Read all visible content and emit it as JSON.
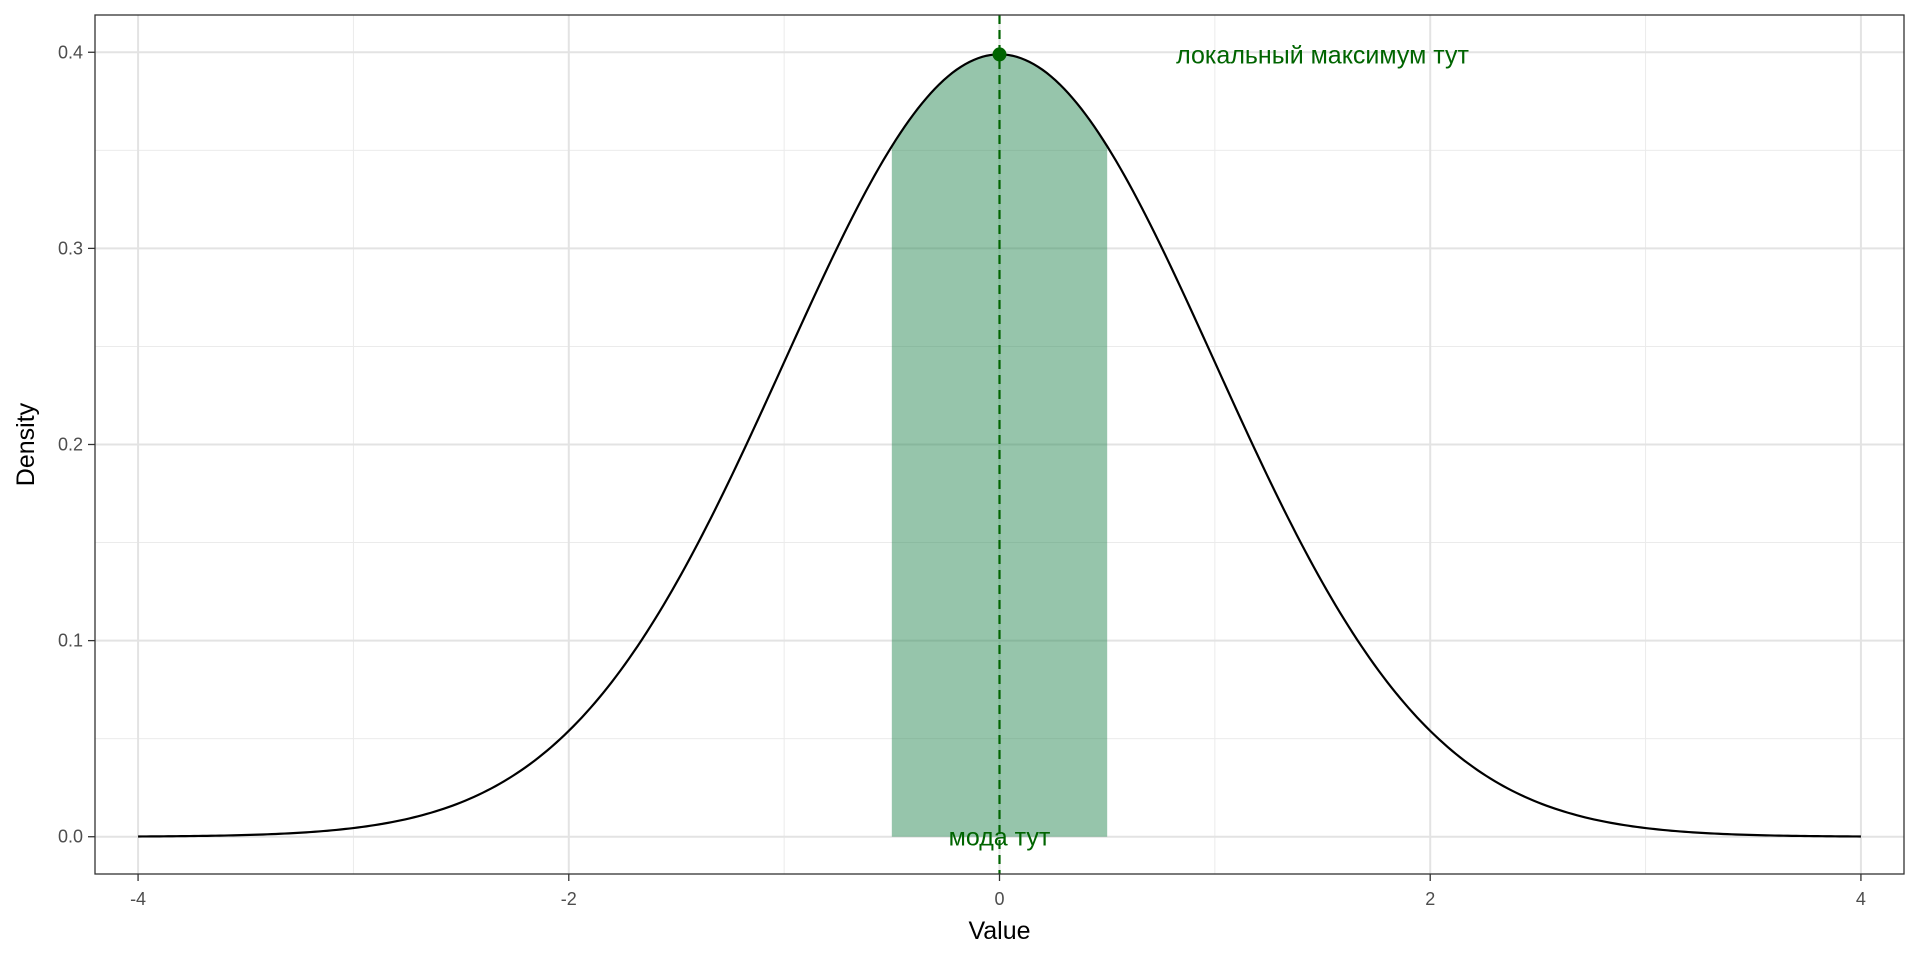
{
  "chart_data": {
    "type": "area",
    "title": "",
    "xlabel": "Value",
    "ylabel": "Density",
    "xlim": [
      -4.2,
      4.2
    ],
    "ylim": [
      -0.019,
      0.419
    ],
    "x_ticks": [
      -4,
      -2,
      0,
      2,
      4
    ],
    "x_tick_labels": [
      "-4",
      "-2",
      "0",
      "2",
      "4"
    ],
    "y_ticks": [
      0.0,
      0.1,
      0.2,
      0.3,
      0.4
    ],
    "y_tick_labels": [
      "0.0",
      "0.1",
      "0.2",
      "0.3",
      "0.4"
    ],
    "grid": true,
    "series": [
      {
        "type": "line",
        "distribution": "standard normal density",
        "x_range": [
          -4,
          4
        ],
        "x": [
          -4,
          -3.5,
          -3,
          -2.5,
          -2,
          -1.5,
          -1,
          -0.5,
          0,
          0.5,
          1,
          1.5,
          2,
          2.5,
          3,
          3.5,
          4
        ],
        "y": [
          0.0001,
          0.0009,
          0.0044,
          0.0175,
          0.054,
          0.1295,
          0.242,
          0.3521,
          0.3989,
          0.3521,
          0.242,
          0.1295,
          0.054,
          0.0175,
          0.0044,
          0.0009,
          0.0001
        ],
        "color": "#000000"
      }
    ],
    "shaded_region": {
      "x_range": [
        -0.5,
        0.5
      ],
      "color": "#2E8B57",
      "opacity": 0.5
    },
    "vline": {
      "x": 0,
      "color": "#006400",
      "style": "dashed"
    },
    "mode_point": {
      "x": 0,
      "y": 0.3989,
      "color": "#006400"
    },
    "annotations": [
      {
        "text": "локальный максимум тут",
        "x": 1.5,
        "y": 0.3989,
        "color": "#006400"
      },
      {
        "text": "мода тут",
        "x": 0,
        "y": 0.0,
        "color": "#006400"
      }
    ]
  }
}
